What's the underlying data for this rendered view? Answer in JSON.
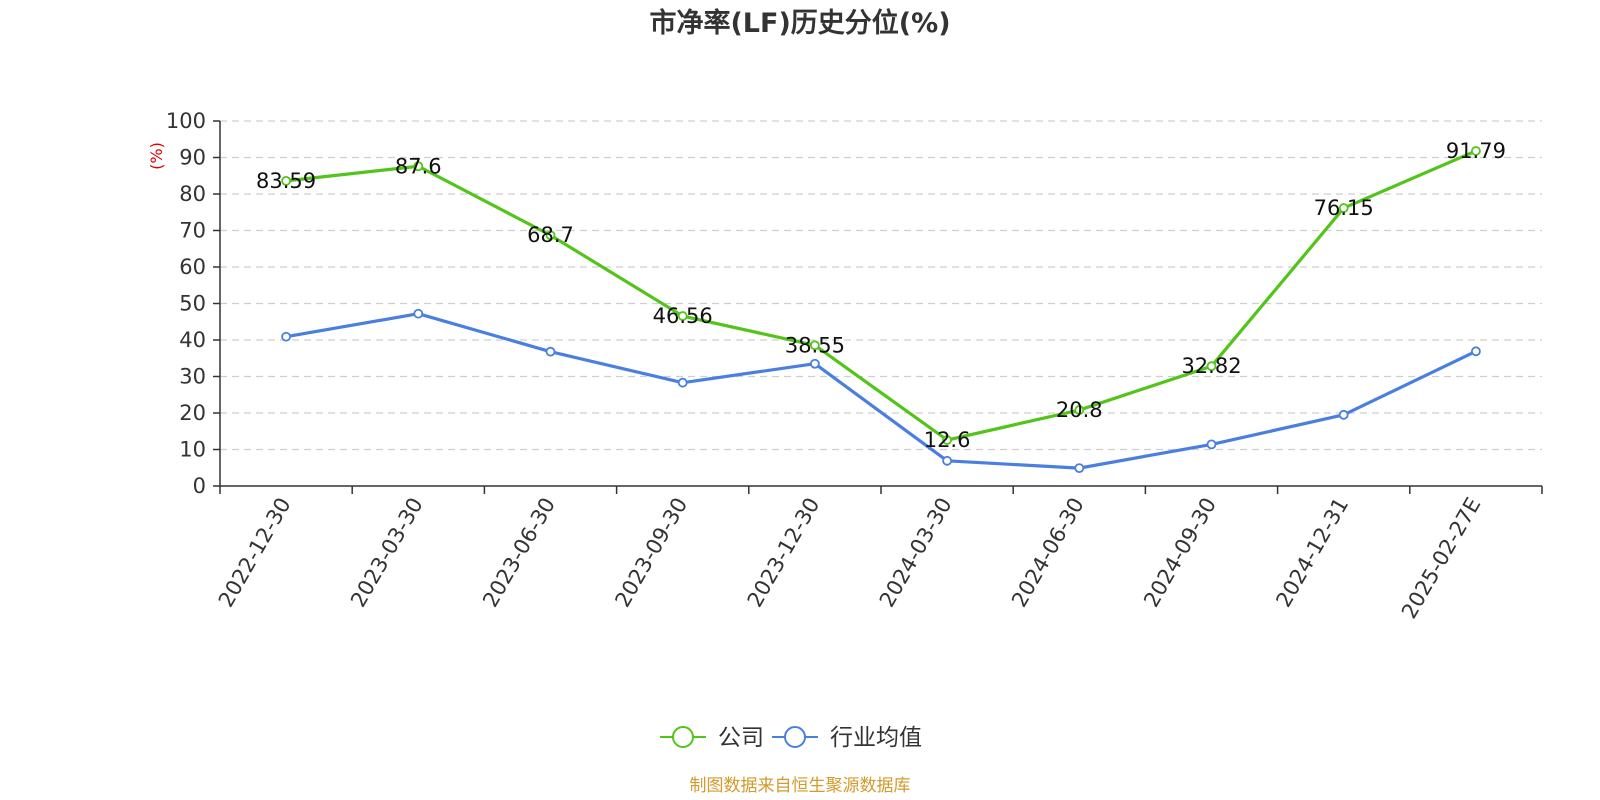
{
  "chart_data": {
    "type": "line",
    "title": "市净率(LF)历史分位(%)",
    "ylabel": "(%)",
    "ylim": [
      0,
      100
    ],
    "yticks": [
      0,
      10,
      20,
      30,
      40,
      50,
      60,
      70,
      80,
      90,
      100
    ],
    "grid": true,
    "legend_position": "bottom",
    "categories": [
      "2022-12-30",
      "2023-03-30",
      "2023-06-30",
      "2023-09-30",
      "2023-12-30",
      "2024-03-30",
      "2024-06-30",
      "2024-09-30",
      "2024-12-31",
      "2025-02-27E"
    ],
    "series": [
      {
        "name": "公司",
        "color": "#52c41a",
        "values": [
          83.59,
          87.6,
          68.7,
          46.56,
          38.55,
          12.6,
          20.8,
          32.82,
          76.15,
          91.79
        ],
        "data_labels": [
          "83.59",
          "87.6",
          "68.7",
          "46.56",
          "38.55",
          "12.6",
          "20.8",
          "32.82",
          "76.15",
          "91.79"
        ]
      },
      {
        "name": "行业均值",
        "color": "#4a7fe0",
        "values": [
          40.9,
          47.2,
          36.8,
          28.3,
          33.5,
          6.9,
          4.9,
          11.4,
          19.5,
          36.9
        ]
      }
    ],
    "unit_color": "#e00000"
  },
  "footer": {
    "source": "制图数据来自恒生聚源数据库",
    "source_color": "#d49a2a"
  }
}
